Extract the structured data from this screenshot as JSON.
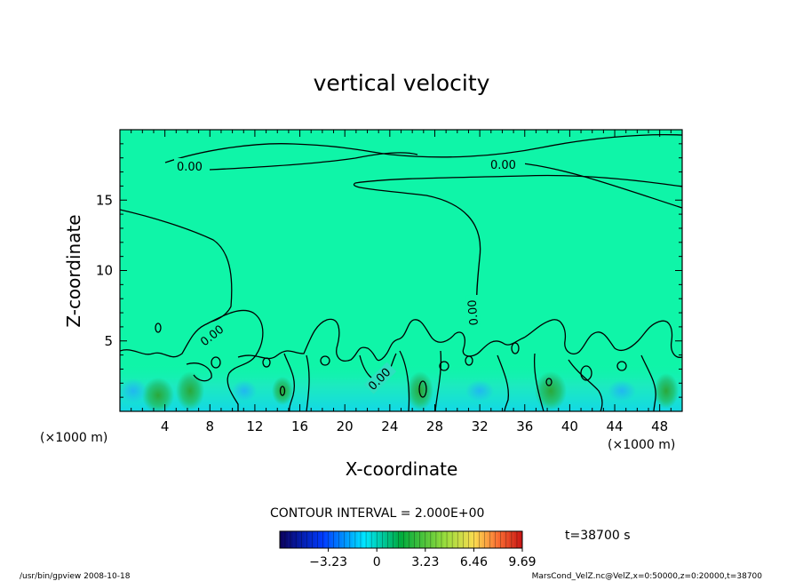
{
  "chart_data": {
    "type": "heatmap",
    "title": "vertical velocity",
    "xlabel": "X-coordinate",
    "ylabel": "Z-coordinate",
    "x_unit_left": "(×1000 m)",
    "x_unit_right": "(×1000 m)",
    "xlim": [
      0,
      50
    ],
    "ylim": [
      0,
      20
    ],
    "x_ticks": [
      4,
      8,
      12,
      16,
      20,
      24,
      28,
      32,
      36,
      40,
      44,
      48
    ],
    "x_tick_labels": [
      "4",
      "8",
      "12",
      "16",
      "20",
      "24",
      "28",
      "32",
      "36",
      "40",
      "44",
      "48"
    ],
    "y_ticks": [
      5,
      10,
      15
    ],
    "y_tick_labels": [
      "5",
      "10",
      "15"
    ],
    "contour_interval_text": "CONTOUR INTERVAL = 2.000E+00",
    "contour_labels": [
      "0.00",
      "0.00",
      "0.00",
      "0.00",
      "0.00"
    ],
    "colorbar": {
      "min": -6.46,
      "max": 9.69,
      "tick_values": [
        -3.23,
        0,
        3.23,
        6.46,
        9.69
      ],
      "tick_labels": [
        "−3.23",
        "0",
        "3.23",
        "6.46",
        "9.69"
      ]
    },
    "time_label": "t=38700 s",
    "background_color": "#0ff5a8",
    "low_level_colors": [
      "#18d8e8",
      "#1ec38e",
      "#30b050"
    ],
    "footer_left": "/usr/bin/gpview   2008-10-18",
    "footer_right": "MarsCond_VelZ.nc@VelZ,x=0:50000,z=0:20000,t=38700"
  }
}
